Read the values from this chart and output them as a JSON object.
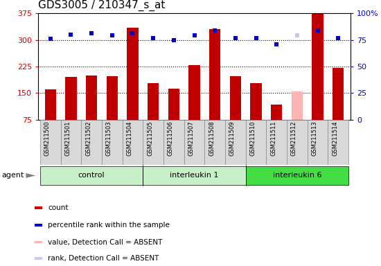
{
  "title": "GDS3005 / 210347_s_at",
  "samples": [
    "GSM211500",
    "GSM211501",
    "GSM211502",
    "GSM211503",
    "GSM211504",
    "GSM211505",
    "GSM211506",
    "GSM211507",
    "GSM211508",
    "GSM211509",
    "GSM211510",
    "GSM211511",
    "GSM211512",
    "GSM211513",
    "GSM211514"
  ],
  "bar_values": [
    160,
    195,
    200,
    197,
    335,
    178,
    163,
    228,
    330,
    197,
    178,
    118,
    155,
    375,
    222
  ],
  "bar_colors": [
    "#c00000",
    "#c00000",
    "#c00000",
    "#c00000",
    "#c00000",
    "#c00000",
    "#c00000",
    "#c00000",
    "#c00000",
    "#c00000",
    "#c00000",
    "#c00000",
    "#ffb3b3",
    "#c00000",
    "#c00000"
  ],
  "rank_values": [
    76,
    80,
    81,
    79,
    81,
    77,
    75,
    79,
    84,
    77,
    77,
    71,
    79,
    84,
    77
  ],
  "rank_colors": [
    "#0000cc",
    "#0000cc",
    "#0000cc",
    "#0000cc",
    "#0000cc",
    "#0000cc",
    "#0000cc",
    "#0000cc",
    "#0000cc",
    "#0000cc",
    "#0000cc",
    "#0000cc",
    "#c8c8e8",
    "#0000cc",
    "#0000cc"
  ],
  "groups": [
    {
      "label": "control",
      "start": 0,
      "end": 4,
      "color": "#c8f0c8"
    },
    {
      "label": "interleukin 1",
      "start": 5,
      "end": 9,
      "color": "#c8f0c8"
    },
    {
      "label": "interleukin 6",
      "start": 10,
      "end": 14,
      "color": "#44dd44"
    }
  ],
  "ylim_left": [
    75,
    375
  ],
  "ylim_right": [
    0,
    100
  ],
  "yticks_left": [
    75,
    150,
    225,
    300,
    375
  ],
  "yticks_right": [
    0,
    25,
    50,
    75,
    100
  ],
  "ytick_labels_right": [
    "0",
    "25",
    "50",
    "75",
    "100%"
  ],
  "hlines": [
    150,
    225,
    300
  ],
  "agent_label": "agent",
  "legend": [
    {
      "color": "#cc0000",
      "label": "count"
    },
    {
      "color": "#0000cc",
      "label": "percentile rank within the sample"
    },
    {
      "color": "#ffb3b3",
      "label": "value, Detection Call = ABSENT"
    },
    {
      "color": "#c8c8e8",
      "label": "rank, Detection Call = ABSENT"
    }
  ],
  "bar_width": 0.55,
  "rank_marker_size": 5,
  "background_color": "#ffffff",
  "plot_bg_color": "#ffffff",
  "title_fontsize": 11
}
